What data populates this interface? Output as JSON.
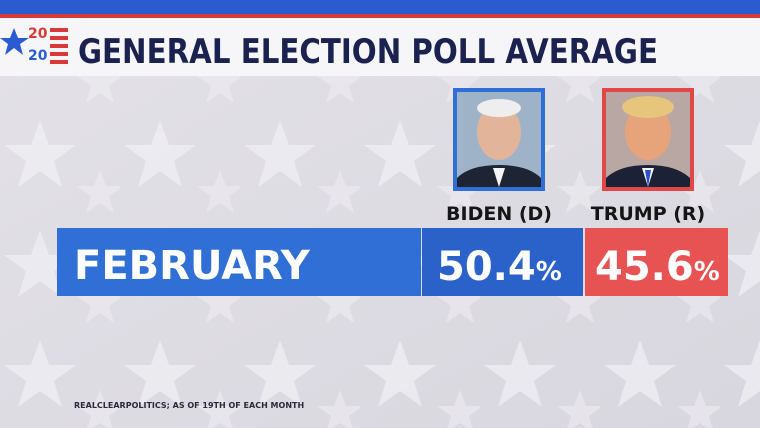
{
  "logo": {
    "top": "20",
    "bottom": "20"
  },
  "header": {
    "title": "GENERAL ELECTION POLL AVERAGE"
  },
  "table": {
    "columns": [
      {
        "name": "BIDEN (D)"
      },
      {
        "name": "TRUMP (R)"
      }
    ],
    "rows": [
      {
        "label": "FEBRUARY",
        "cells": [
          {
            "value": "50.4",
            "unit": "%"
          },
          {
            "value": "45.6",
            "unit": "%"
          }
        ]
      }
    ]
  },
  "footnote": "REALCLEARPOLITICS; AS OF 19TH OF EACH MONTH"
}
